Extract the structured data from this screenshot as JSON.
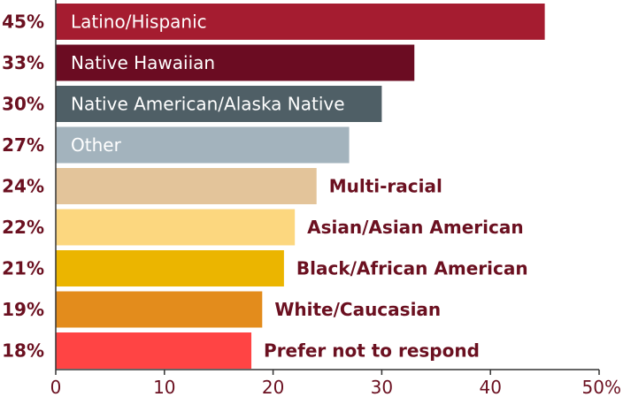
{
  "chart_data": {
    "type": "bar",
    "orientation": "horizontal",
    "categories": [
      "Latino/Hispanic",
      "Native Hawaiian",
      "Native American/Alaska Native",
      "Other",
      "Multi-racial",
      "Asian/Asian American",
      "Black/African American",
      "White/Caucasian",
      "Prefer not to respond"
    ],
    "values": [
      45,
      33,
      30,
      27,
      24,
      22,
      21,
      19,
      18
    ],
    "value_labels": [
      "45%",
      "33%",
      "30%",
      "27%",
      "24%",
      "22%",
      "21%",
      "19%",
      "18%"
    ],
    "colors": [
      "#a51c30",
      "#6b0c22",
      "#4f5f66",
      "#a3b3bd",
      "#e3c49a",
      "#fcd77f",
      "#ebb500",
      "#e38c1c",
      "#ff4444"
    ],
    "label_inside": [
      true,
      true,
      true,
      true,
      false,
      false,
      false,
      false,
      false
    ],
    "xlim": [
      0,
      50
    ],
    "xticks": [
      0,
      10,
      20,
      30,
      40,
      50
    ],
    "xtick_labels": [
      "0",
      "10",
      "20",
      "30",
      "40",
      "50%"
    ],
    "xlabel": "",
    "ylabel": "",
    "title": "",
    "grid": false,
    "legend": "none"
  },
  "colors": {
    "text": "#6b1020",
    "axis": "#333333"
  }
}
